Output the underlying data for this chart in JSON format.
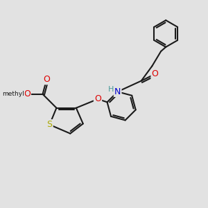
{
  "bg_color": "#e2e2e2",
  "bond_color": "#1a1a1a",
  "bond_width": 1.5,
  "atom_colors": {
    "O": "#dd0000",
    "S": "#aaaa00",
    "N": "#0000cc",
    "H": "#4a9a9a",
    "C": "#1a1a1a"
  },
  "figsize": [
    3.0,
    3.0
  ],
  "dpi": 100,
  "xlim": [
    0,
    10
  ],
  "ylim": [
    0,
    10
  ]
}
